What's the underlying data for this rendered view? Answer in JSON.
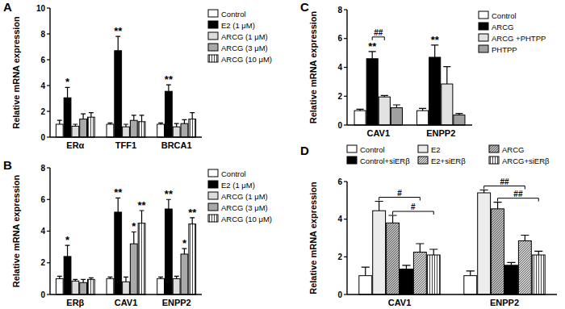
{
  "chart_data": [
    {
      "type": "bar",
      "panel_label": "A",
      "y_label": "Relative mRNA expression",
      "categories": [
        "ERα",
        "TFF1",
        "BRCA1"
      ],
      "ylim": [
        0,
        10
      ],
      "yticks": [
        0,
        2,
        4,
        6,
        8,
        10
      ],
      "grid": false,
      "legend": "right",
      "series": [
        {
          "name": "Control",
          "color": "#ffffff",
          "values": [
            1.0,
            1.0,
            1.0
          ],
          "errors": [
            0.3,
            0.1,
            0.1
          ]
        },
        {
          "name": "E2 (1 μM)",
          "color": "#000000",
          "values": [
            3.05,
            6.7,
            3.55
          ],
          "errors": [
            0.8,
            1.1,
            0.5
          ],
          "significance": [
            "*",
            "**",
            "**"
          ]
        },
        {
          "name": "ARCG (1 μM)",
          "color": "#dcdcdc",
          "values": [
            0.85,
            0.8,
            0.8
          ],
          "errors": [
            0.15,
            0.2,
            0.25
          ]
        },
        {
          "name": "ARCG (3 μM)",
          "color": "#a9a9a9",
          "values": [
            1.4,
            1.3,
            1.05
          ],
          "errors": [
            0.4,
            0.4,
            0.3
          ]
        },
        {
          "name": "ARCG (10 μM)",
          "color": "#ffffff",
          "values": [
            1.55,
            1.2,
            1.4
          ],
          "errors": [
            0.35,
            0.5,
            0.5
          ]
        }
      ]
    },
    {
      "type": "bar",
      "panel_label": "B",
      "y_label": "Relative mRNA expression",
      "categories": [
        "ERβ",
        "CAV1",
        "ENPP2"
      ],
      "ylim": [
        0,
        8
      ],
      "yticks": [
        0,
        2,
        4,
        6,
        8
      ],
      "grid": false,
      "legend": "right",
      "series": [
        {
          "name": "Control",
          "color": "#ffffff",
          "values": [
            1.0,
            1.0,
            1.0
          ],
          "errors": [
            0.15,
            0.1,
            0.1
          ]
        },
        {
          "name": "E2 (1 μM)",
          "color": "#000000",
          "values": [
            2.4,
            5.2,
            5.4
          ],
          "errors": [
            0.7,
            0.9,
            0.6
          ],
          "significance": [
            "*",
            "**",
            "**"
          ]
        },
        {
          "name": "ARCG (1 μM)",
          "color": "#dcdcdc",
          "values": [
            0.85,
            0.8,
            1.0
          ],
          "errors": [
            0.1,
            0.3,
            0.15
          ]
        },
        {
          "name": "ARCG (3 μM)",
          "color": "#a9a9a9",
          "values": [
            0.75,
            3.2,
            2.55
          ],
          "errors": [
            0.2,
            0.75,
            0.35
          ],
          "significance": [
            null,
            "*",
            "*"
          ]
        },
        {
          "name": "ARCG (10 μM)",
          "color": "#ffffff",
          "values": [
            0.95,
            4.5,
            4.45
          ],
          "errors": [
            0.1,
            0.8,
            0.4
          ],
          "significance": [
            null,
            "**",
            "**"
          ]
        }
      ]
    },
    {
      "type": "bar",
      "panel_label": "C",
      "y_label": "Relative mRNA expression",
      "categories": [
        "CAV1",
        "ENPP2"
      ],
      "ylim": [
        0,
        8
      ],
      "yticks": [
        0,
        2,
        4,
        6,
        8
      ],
      "grid": false,
      "legend": "right",
      "series": [
        {
          "name": "Control",
          "color": "#ffffff",
          "values": [
            1.0,
            1.0
          ],
          "errors": [
            0.1,
            0.15
          ]
        },
        {
          "name": "ARCG",
          "color": "#000000",
          "values": [
            4.6,
            4.7
          ],
          "errors": [
            0.5,
            0.85
          ],
          "significance": [
            "**",
            "**"
          ]
        },
        {
          "name": "ARCG +PHTPP",
          "color": "#e2e2e2",
          "values": [
            1.95,
            2.85
          ],
          "errors": [
            0.1,
            1.2
          ]
        },
        {
          "name": "PHTPP",
          "color": "#a0a0a0",
          "values": [
            1.2,
            0.7
          ],
          "errors": [
            0.2,
            0.1
          ]
        }
      ],
      "brackets": [
        {
          "text": "##",
          "category": 0,
          "from_series": 1,
          "to_series": 2
        }
      ]
    },
    {
      "type": "bar",
      "panel_label": "D",
      "y_label": "Relative mRNA expression",
      "categories": [
        "CAV1",
        "ENPP2"
      ],
      "ylim": [
        0,
        6
      ],
      "yticks": [
        0,
        2,
        4,
        6
      ],
      "grid": false,
      "legend": "top",
      "series": [
        {
          "name": "Control",
          "color": "#ffffff",
          "values": [
            1.0,
            1.0
          ],
          "errors": [
            0.45,
            0.25
          ]
        },
        {
          "name": "E2",
          "color": "#ececec",
          "values": [
            4.45,
            5.4
          ],
          "errors": [
            0.5,
            0.15
          ]
        },
        {
          "name": "ARCG",
          "color": "#bdbdbd",
          "values": [
            3.8,
            4.55
          ],
          "errors": [
            0.4,
            0.35
          ]
        },
        {
          "name": "Control+siERβ",
          "color": "#000000",
          "values": [
            1.35,
            1.55
          ],
          "errors": [
            0.2,
            0.15
          ]
        },
        {
          "name": "E2+siERβ",
          "color": "#d4d4d4",
          "values": [
            2.25,
            2.85
          ],
          "errors": [
            0.45,
            0.3
          ]
        },
        {
          "name": "ARCG+siERβ",
          "color": "#ffffff",
          "values": [
            2.1,
            2.1
          ],
          "errors": [
            0.3,
            0.2
          ]
        }
      ],
      "brackets": [
        {
          "text": "#",
          "category": 0,
          "from_series": 1,
          "to_series": 4
        },
        {
          "text": "#",
          "category": 0,
          "from_series": 2,
          "to_series": 5
        },
        {
          "text": "##",
          "category": 1,
          "from_series": 1,
          "to_series": 4
        },
        {
          "text": "##",
          "category": 1,
          "from_series": 2,
          "to_series": 5
        }
      ]
    }
  ]
}
